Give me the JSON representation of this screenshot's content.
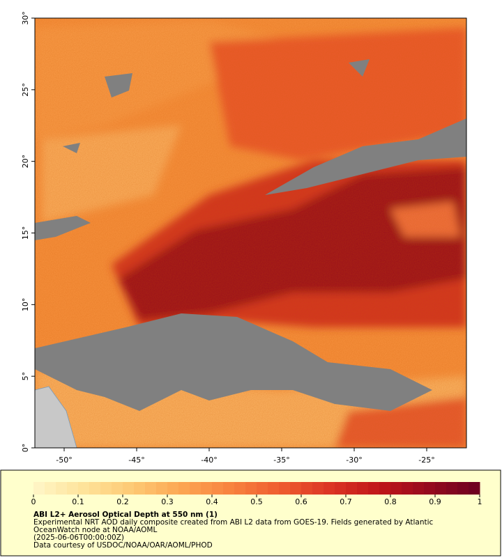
{
  "map": {
    "xlim": [
      -52.02,
      -22.26
    ],
    "ylim": [
      0,
      30
    ],
    "xticks": [
      {
        "value": -50,
        "label": "-50°"
      },
      {
        "value": -45,
        "label": "-45°"
      },
      {
        "value": -40,
        "label": "-40°"
      },
      {
        "value": -35,
        "label": "-35°"
      },
      {
        "value": -30,
        "label": "-30°"
      },
      {
        "value": -25,
        "label": "-25°"
      }
    ],
    "yticks": [
      {
        "value": 0,
        "label": "0°"
      },
      {
        "value": 5,
        "label": "5°"
      },
      {
        "value": 10,
        "label": "10°"
      },
      {
        "value": 15,
        "label": "15°"
      },
      {
        "value": 20,
        "label": "20°"
      },
      {
        "value": 25,
        "label": "25°"
      },
      {
        "value": 30,
        "label": "30°"
      }
    ]
  },
  "colorbar": {
    "lim": [
      0,
      1
    ],
    "ticks": [
      0,
      0.1,
      0.2,
      0.3,
      0.4,
      0.5,
      0.6,
      0.7,
      0.8,
      0.9,
      1
    ],
    "colors": [
      "#fff6c8",
      "#fee39a",
      "#fdc974",
      "#fca552",
      "#f8823e",
      "#ee5b2f",
      "#db3424",
      "#bf1519",
      "#940a1e",
      "#6b0020"
    ],
    "title": "ABI L2+ Aerosol Optical Depth at 550 nm (1)",
    "notes": [
      "Experimental NRT AOD daily composite created from ABI L2 data from GOES-19. Fields generated by Atlantic",
      "OceanWatch node at NOAA/AOML",
      "(2025-06-06T00:00:00Z)",
      "Data courtesy of USDOC/NOAA/OAR/AOML/PHOD"
    ]
  }
}
